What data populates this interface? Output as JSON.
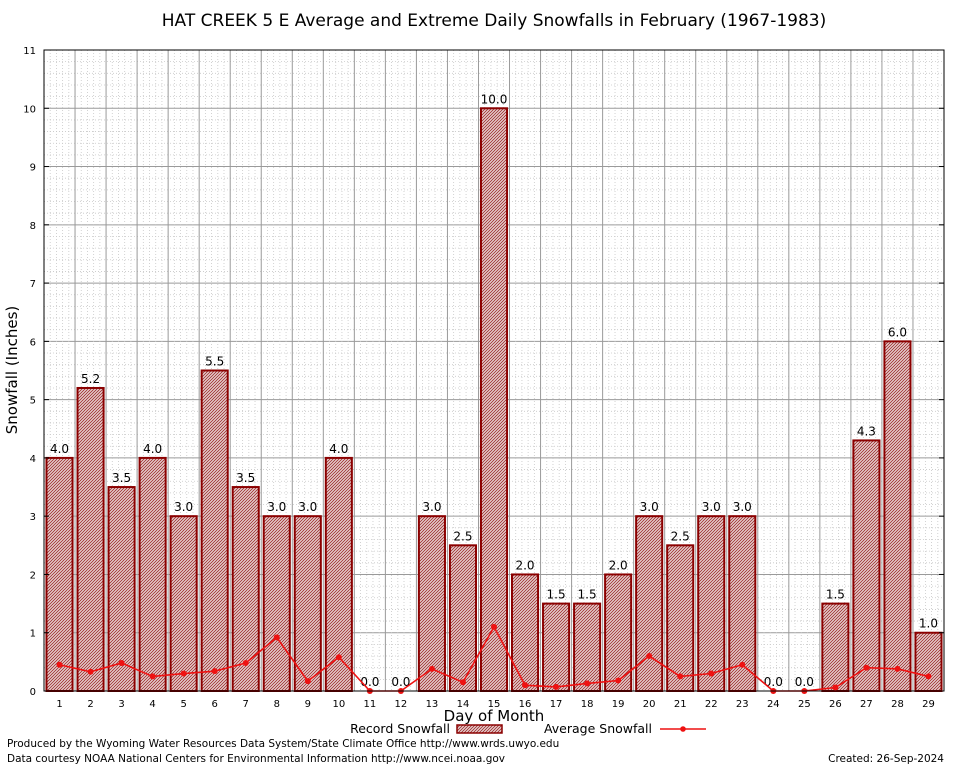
{
  "chart_data": {
    "type": "bar",
    "title": "HAT CREEK 5 E Average and Extreme Daily Snowfalls in February (1967-1983)",
    "xlabel": "Day of Month",
    "ylabel": "Snowfall (Inches)",
    "ylim": [
      0,
      11
    ],
    "yticks": [
      "0",
      "1",
      "2",
      "3",
      "4",
      "5",
      "6",
      "7",
      "8",
      "9",
      "10",
      "11"
    ],
    "grid": true,
    "legend_position": "bottom",
    "categories": [
      "1",
      "2",
      "3",
      "4",
      "5",
      "6",
      "7",
      "8",
      "9",
      "10",
      "11",
      "12",
      "13",
      "14",
      "15",
      "16",
      "17",
      "18",
      "19",
      "20",
      "21",
      "22",
      "23",
      "24",
      "25",
      "26",
      "27",
      "28",
      "29"
    ],
    "series": [
      {
        "name": "Record Snowfall",
        "type": "bar",
        "color": "#8b0000",
        "values": [
          4.0,
          5.2,
          3.5,
          4.0,
          3.0,
          5.5,
          3.5,
          3.0,
          3.0,
          4.0,
          0.0,
          0.0,
          3.0,
          2.5,
          10.0,
          2.0,
          1.5,
          1.5,
          2.0,
          3.0,
          2.5,
          3.0,
          3.0,
          0.0,
          0.0,
          1.5,
          4.3,
          6.0,
          1.0
        ],
        "labels": [
          "4.0",
          "5.2",
          "3.5",
          "4.0",
          "3.0",
          "5.5",
          "3.5",
          "3.0",
          "3.0",
          "4.0",
          "0.0",
          "0.0",
          "3.0",
          "2.5",
          "10.0",
          "2.0",
          "1.5",
          "1.5",
          "2.0",
          "3.0",
          "2.5",
          "3.0",
          "3.0",
          "0.0",
          "0.0",
          "1.5",
          "4.3",
          "6.0",
          "1.0"
        ]
      },
      {
        "name": "Average Snowfall",
        "type": "line",
        "color": "#ee1111",
        "values": [
          0.45,
          0.33,
          0.48,
          0.25,
          0.3,
          0.34,
          0.48,
          0.92,
          0.17,
          0.58,
          0.0,
          0.0,
          0.38,
          0.15,
          1.1,
          0.1,
          0.07,
          0.13,
          0.18,
          0.6,
          0.25,
          0.3,
          0.45,
          0.0,
          0.0,
          0.06,
          0.4,
          0.38,
          0.25
        ]
      }
    ]
  },
  "footer": {
    "produced_by": "Produced by the Wyoming Water Resources Data System/State Climate Office http://www.wrds.uwyo.edu",
    "courtesy": "Data courtesy NOAA National Centers for Environmental Information http://www.ncei.noaa.gov",
    "created": "Created:  26-Sep-2024"
  }
}
